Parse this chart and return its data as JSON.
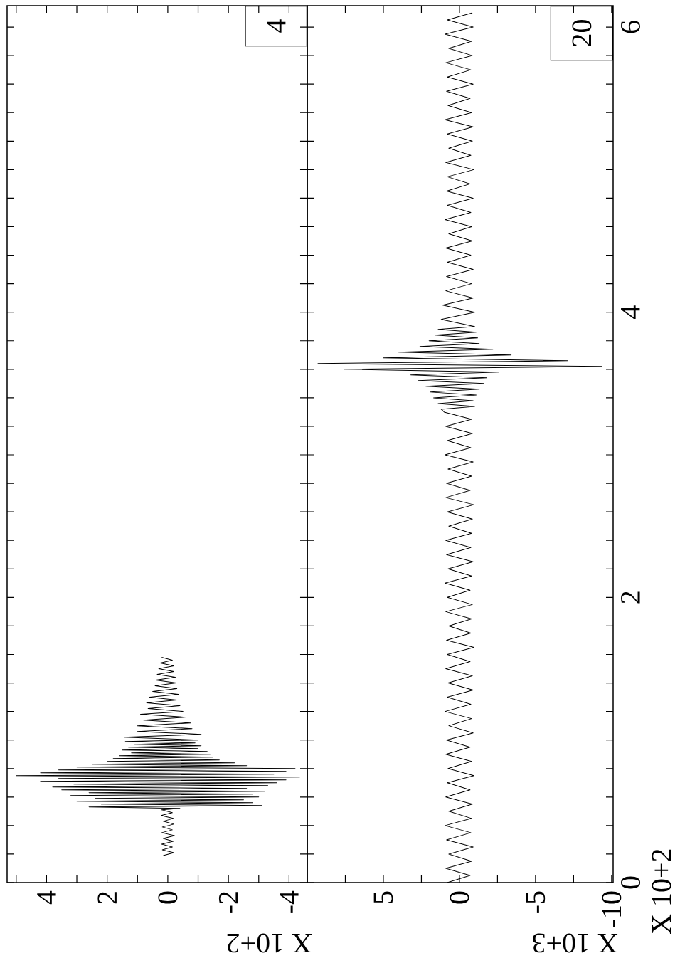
{
  "chart_data": [
    {
      "type": "line",
      "color": "#000000",
      "xlabel": "X 10+2",
      "annotations": [
        "4"
      ],
      "tick_labels": "x",
      "xlim": [
        5.3,
        -4.6
      ],
      "ylim": [
        0,
        6.15
      ],
      "xticks": [
        4,
        {
          "value": 5,
          "label": null
        },
        {
          "value": 3,
          "label": null
        },
        2,
        {
          "value": 1,
          "label": null
        },
        0,
        {
          "value": -1,
          "label": null
        },
        -2,
        {
          "value": -3,
          "label": null
        },
        -4
      ],
      "yticks": [
        0,
        {
          "value": 0.2,
          "label": null
        },
        {
          "value": 0.4,
          "label": null
        },
        {
          "value": 0.6,
          "label": null
        },
        {
          "value": 0.8,
          "label": null
        },
        {
          "value": 1.0,
          "label": null
        },
        {
          "value": 1.2,
          "label": null
        },
        {
          "value": 1.4,
          "label": null
        },
        {
          "value": 1.6,
          "label": null
        },
        {
          "value": 1.8,
          "label": null
        },
        2,
        {
          "value": 2.2,
          "label": null
        },
        {
          "value": 2.4,
          "label": null
        },
        {
          "value": 2.6,
          "label": null
        },
        {
          "value": 2.8,
          "label": null
        },
        {
          "value": 3.0,
          "label": null
        },
        {
          "value": 3.2,
          "label": null
        },
        {
          "value": 3.4,
          "label": null
        },
        {
          "value": 3.6,
          "label": null
        },
        {
          "value": 3.8,
          "label": null
        },
        4,
        {
          "value": 4.2,
          "label": null
        },
        {
          "value": 4.4,
          "label": null
        },
        {
          "value": 4.6,
          "label": null
        },
        {
          "value": 4.8,
          "label": null
        },
        {
          "value": 5.0,
          "label": null
        },
        {
          "value": 5.2,
          "label": null
        },
        {
          "value": 5.4,
          "label": null
        },
        {
          "value": 5.6,
          "label": null
        },
        {
          "value": 5.8,
          "label": null
        },
        6
      ],
      "values": [
        0.19,
        0.21,
        0.23,
        0.25,
        0.27,
        0.29,
        0.31,
        0.33,
        0.35,
        0.37,
        0.39,
        0.41,
        0.43,
        0.45,
        0.47,
        0.49,
        0.51,
        0.52,
        0.53,
        0.54,
        0.55,
        0.56,
        0.57,
        0.58,
        0.59,
        0.6,
        0.61,
        0.62,
        0.63,
        0.64,
        0.65,
        0.66,
        0.67,
        0.68,
        0.69,
        0.7,
        0.71,
        0.72,
        0.73,
        0.74,
        0.75,
        0.76,
        0.77,
        0.78,
        0.79,
        0.8,
        0.81,
        0.82,
        0.83,
        0.84,
        0.85,
        0.86,
        0.87,
        0.88,
        0.89,
        0.9,
        0.91,
        0.92,
        0.93,
        0.94,
        0.95,
        0.96,
        0.97,
        0.98,
        0.99,
        1.0,
        1.02,
        1.04,
        1.06,
        1.08,
        1.1,
        1.12,
        1.14,
        1.16,
        1.18,
        1.2,
        1.22,
        1.24,
        1.26,
        1.28,
        1.3,
        1.32,
        1.34,
        1.36,
        1.38,
        1.4,
        1.42,
        1.44,
        1.46,
        1.48,
        1.5,
        1.52,
        1.54,
        1.56,
        1.58
      ],
      "x": [
        0.15,
        -0.2,
        0.18,
        -0.15,
        0.2,
        -0.18,
        0.15,
        -0.22,
        0.2,
        -0.15,
        0.18,
        -0.2,
        0.15,
        -0.18,
        0.22,
        -0.15,
        0.2,
        -0.4,
        2.6,
        -3.1,
        2.2,
        -2.8,
        3.0,
        -2.5,
        2.4,
        -3.0,
        3.2,
        -2.8,
        2.6,
        -3.2,
        3.5,
        -2.6,
        3.8,
        -3.3,
        3.1,
        -3.6,
        4.2,
        -3.9,
        3.6,
        -4.35,
        5.0,
        -3.5,
        4.2,
        -3.9,
        3.6,
        -4.2,
        3.0,
        -2.6,
        2.5,
        -2.2,
        2.0,
        -1.7,
        1.8,
        -1.5,
        1.6,
        -1.4,
        1.2,
        -1.3,
        1.5,
        -1.0,
        1.3,
        -1.1,
        1.1,
        -0.9,
        1.4,
        -1.0,
        1.45,
        -1.1,
        1.0,
        -0.8,
        1.0,
        -0.75,
        0.8,
        -0.6,
        0.9,
        -0.5,
        0.65,
        -0.4,
        0.7,
        -0.3,
        0.6,
        -0.35,
        0.5,
        -0.3,
        0.42,
        -0.28,
        0.4,
        -0.25,
        0.35,
        -0.2,
        0.3,
        -0.2,
        0.25,
        -0.15,
        0.2
      ]
    },
    {
      "type": "line",
      "color": "#000000",
      "xlabel": "X 10+3",
      "ylabel": "X 10+2",
      "annotations": [
        "20"
      ],
      "xlim": [
        10,
        -10.1
      ],
      "ylim": [
        0,
        6.15
      ],
      "xticks": [
        {
          "value": 7.5,
          "label": null
        },
        5,
        {
          "value": 2.5,
          "label": null
        },
        0,
        {
          "value": -2.5,
          "label": null
        },
        -5,
        {
          "value": -7.5,
          "label": null
        },
        -10
      ],
      "yticks": [
        0,
        {
          "value": 0.2,
          "label": null
        },
        {
          "value": 0.4,
          "label": null
        },
        {
          "value": 0.6,
          "label": null
        },
        {
          "value": 0.8,
          "label": null
        },
        {
          "value": 1.0,
          "label": null
        },
        {
          "value": 1.2,
          "label": null
        },
        {
          "value": 1.4,
          "label": null
        },
        {
          "value": 1.6,
          "label": null
        },
        {
          "value": 1.8,
          "label": null
        },
        2,
        {
          "value": 2.2,
          "label": null
        },
        {
          "value": 2.4,
          "label": null
        },
        {
          "value": 2.6,
          "label": null
        },
        {
          "value": 2.8,
          "label": null
        },
        {
          "value": 3.0,
          "label": null
        },
        {
          "value": 3.2,
          "label": null
        },
        {
          "value": 3.4,
          "label": null
        },
        {
          "value": 3.6,
          "label": null
        },
        {
          "value": 3.8,
          "label": null
        },
        4,
        {
          "value": 4.2,
          "label": null
        },
        {
          "value": 4.4,
          "label": null
        },
        {
          "value": 4.6,
          "label": null
        },
        {
          "value": 4.8,
          "label": null
        },
        {
          "value": 5.0,
          "label": null
        },
        {
          "value": 5.2,
          "label": null
        },
        {
          "value": 5.4,
          "label": null
        },
        {
          "value": 5.6,
          "label": null
        },
        {
          "value": 5.8,
          "label": null
        },
        6
      ],
      "values": [
        0.0,
        0.05,
        0.1,
        0.15,
        0.2,
        0.25,
        0.3,
        0.35,
        0.4,
        0.45,
        0.5,
        0.55,
        0.6,
        0.65,
        0.7,
        0.75,
        0.8,
        0.85,
        0.9,
        0.95,
        1.0,
        1.05,
        1.1,
        1.15,
        1.2,
        1.25,
        1.3,
        1.35,
        1.4,
        1.45,
        1.5,
        1.55,
        1.6,
        1.65,
        1.7,
        1.75,
        1.8,
        1.85,
        1.9,
        1.95,
        2.0,
        2.05,
        2.1,
        2.15,
        2.2,
        2.25,
        2.3,
        2.35,
        2.4,
        2.45,
        2.5,
        2.55,
        2.6,
        2.65,
        2.7,
        2.75,
        2.8,
        2.85,
        2.9,
        2.95,
        3.0,
        3.05,
        3.1,
        3.15,
        3.2,
        3.25,
        3.3,
        3.32,
        3.34,
        3.36,
        3.38,
        3.4,
        3.42,
        3.44,
        3.46,
        3.48,
        3.5,
        3.52,
        3.54,
        3.56,
        3.58,
        3.6,
        3.62,
        3.64,
        3.66,
        3.68,
        3.7,
        3.72,
        3.74,
        3.76,
        3.78,
        3.8,
        3.82,
        3.84,
        3.86,
        3.88,
        3.9,
        3.95,
        4.0,
        4.05,
        4.1,
        4.15,
        4.2,
        4.25,
        4.3,
        4.35,
        4.4,
        4.45,
        4.5,
        4.55,
        4.6,
        4.65,
        4.7,
        4.75,
        4.8,
        4.85,
        4.9,
        4.95,
        5.0,
        5.05,
        5.1,
        5.15,
        5.2,
        5.25,
        5.3,
        5.35,
        5.4,
        5.45,
        5.5,
        5.55,
        5.6,
        5.65,
        5.7,
        5.75,
        5.8,
        5.85,
        5.9,
        5.95,
        6.0,
        6.05,
        6.1
      ],
      "x": [
        0.8,
        -0.7,
        0.9,
        -0.8,
        0.7,
        -0.9,
        0.85,
        -0.75,
        0.95,
        -0.8,
        0.7,
        -0.85,
        0.9,
        -0.7,
        0.8,
        -0.95,
        0.75,
        -0.8,
        0.9,
        -0.7,
        0.85,
        -0.9,
        0.7,
        -0.8,
        0.95,
        -0.75,
        0.8,
        -0.9,
        0.75,
        -0.85,
        0.9,
        -0.7,
        0.8,
        -0.95,
        0.85,
        -0.75,
        0.7,
        -0.8,
        0.9,
        -0.85,
        0.8,
        -0.7,
        0.95,
        -0.8,
        0.75,
        -0.9,
        0.85,
        -0.75,
        0.9,
        -0.8,
        0.7,
        -0.85,
        0.8,
        -0.95,
        0.9,
        -0.7,
        0.85,
        -0.8,
        0.75,
        -0.9,
        0.95,
        -0.75,
        0.8,
        -0.85,
        0.9,
        -0.8,
        1.0,
        1.2,
        -1.0,
        1.4,
        -0.9,
        1.7,
        -1.1,
        1.9,
        -1.3,
        2.2,
        -1.6,
        2.7,
        -1.8,
        3.2,
        -2.6,
        7.6,
        -9.35,
        9.3,
        -7.1,
        5.0,
        -3.4,
        4.0,
        -2.2,
        2.6,
        -1.3,
        2.0,
        -1.2,
        1.6,
        -1.1,
        1.4,
        -1.0,
        1.2,
        -1.0,
        1.1,
        -0.9,
        0.9,
        -0.8,
        0.85,
        -0.9,
        0.8,
        -0.75,
        0.9,
        -0.85,
        0.7,
        -0.8,
        0.95,
        -0.75,
        0.8,
        -0.9,
        0.85,
        -0.7,
        0.8,
        -0.95,
        0.9,
        -0.75,
        0.7,
        -0.85,
        0.8,
        -0.9,
        0.95,
        -0.8,
        0.75,
        -0.7,
        0.85,
        -0.9,
        0.8,
        -0.75,
        0.9,
        -0.85,
        0.7,
        -0.8,
        0.95,
        -0.9,
        0.8,
        -0.85
      ]
    }
  ]
}
